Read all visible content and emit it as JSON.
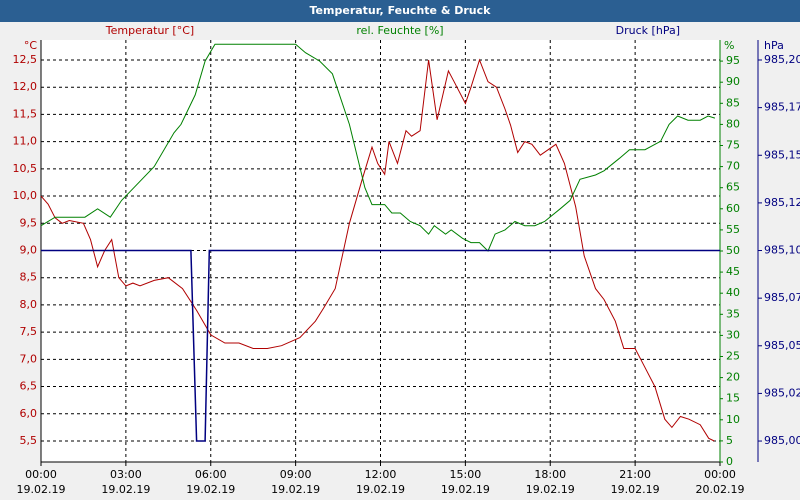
{
  "chart_data": {
    "type": "line",
    "title": "Temperatur, Feuchte & Druck",
    "y_unit": "°C",
    "y2_unit": "%",
    "y3_unit": "hPa",
    "xlim": [
      0,
      24
    ],
    "xticks": [
      {
        "value": 0,
        "label": "00:00"
      },
      {
        "value": 3,
        "label": "03:00"
      },
      {
        "value": 6,
        "label": "06:00"
      },
      {
        "value": 9,
        "label": "09:00"
      },
      {
        "value": 12,
        "label": "12:00"
      },
      {
        "value": 15,
        "label": "15:00"
      },
      {
        "value": 18,
        "label": "18:00"
      },
      {
        "value": 21,
        "label": "21:00"
      },
      {
        "value": 24,
        "label": "00:00"
      }
    ],
    "xtick_dates": [
      "19.02.19",
      "19.02.19",
      "19.02.19",
      "19.02.19",
      "19.02.19",
      "19.02.19",
      "19.02.19",
      "19.02.19",
      "20.02.19"
    ],
    "ylim": [
      5.114,
      12.867
    ],
    "yticks": [
      {
        "value": 5.5,
        "label": "5,5"
      },
      {
        "value": 6,
        "label": "6,0"
      },
      {
        "value": 6.5,
        "label": "6,5"
      },
      {
        "value": 7,
        "label": "7,0"
      },
      {
        "value": 7.5,
        "label": "7,5"
      },
      {
        "value": 8,
        "label": "8,0"
      },
      {
        "value": 8.5,
        "label": "8,5"
      },
      {
        "value": 9,
        "label": "9,0"
      },
      {
        "value": 9.5,
        "label": "9,5"
      },
      {
        "value": 10,
        "label": "10,0"
      },
      {
        "value": 10.5,
        "label": "10,5"
      },
      {
        "value": 11,
        "label": "11,0"
      },
      {
        "value": 11.5,
        "label": "11,5"
      },
      {
        "value": 12,
        "label": "12,0"
      },
      {
        "value": 12.5,
        "label": "12,5"
      }
    ],
    "y2lim": [
      0,
      100
    ],
    "y2ticks": [
      0,
      5,
      10,
      15,
      20,
      25,
      30,
      35,
      40,
      45,
      50,
      55,
      60,
      65,
      70,
      75,
      80,
      85,
      90,
      95
    ],
    "y3lim": [
      984.989,
      985.2105
    ],
    "y3ticks": [
      {
        "value": 985.0,
        "label": "985,00"
      },
      {
        "value": 985.025,
        "label": "985,02"
      },
      {
        "value": 985.05,
        "label": "985,05"
      },
      {
        "value": 985.075,
        "label": "985,07"
      },
      {
        "value": 985.1,
        "label": "985,10"
      },
      {
        "value": 985.125,
        "label": "985,12"
      },
      {
        "value": 985.15,
        "label": "985,15"
      },
      {
        "value": 985.175,
        "label": "985,17"
      },
      {
        "value": 985.2,
        "label": "985,20"
      }
    ],
    "grid": true,
    "series": [
      {
        "name": "Temperatur [°C]",
        "color": "#b00000",
        "axis": "y",
        "x": [
          0,
          0.25,
          0.5,
          0.75,
          1.0,
          1.5,
          1.75,
          2.0,
          2.25,
          2.5,
          2.75,
          3.0,
          3.25,
          3.5,
          4.0,
          4.5,
          5.0,
          5.5,
          6.0,
          6.5,
          7.0,
          7.5,
          8.0,
          8.5,
          9.15,
          9.7,
          10.0,
          10.4,
          10.9,
          11.35,
          11.7,
          11.9,
          12.15,
          12.3,
          12.6,
          12.9,
          13.1,
          13.4,
          13.7,
          14.0,
          14.4,
          14.6,
          15.0,
          15.2,
          15.5,
          15.8,
          16.1,
          16.4,
          16.6,
          16.85,
          17.1,
          17.35,
          17.65,
          18.2,
          18.5,
          18.9,
          19.2,
          19.6,
          19.9,
          20.3,
          20.6,
          21.0,
          21.3,
          21.7,
          22.05,
          22.3,
          22.6,
          22.9,
          23.3,
          23.6,
          23.8
        ],
        "values": [
          10.0,
          9.85,
          9.6,
          9.5,
          9.55,
          9.5,
          9.2,
          8.7,
          9.0,
          9.2,
          8.5,
          8.35,
          8.4,
          8.35,
          8.45,
          8.5,
          8.3,
          7.9,
          7.45,
          7.3,
          7.3,
          7.2,
          7.2,
          7.25,
          7.4,
          7.7,
          7.95,
          8.3,
          9.5,
          10.3,
          10.9,
          10.6,
          10.4,
          11.0,
          10.6,
          11.2,
          11.1,
          11.2,
          12.5,
          11.4,
          12.3,
          12.1,
          11.7,
          12.0,
          12.5,
          12.1,
          12.0,
          11.6,
          11.3,
          10.8,
          11.0,
          10.95,
          10.75,
          10.95,
          10.6,
          9.8,
          8.9,
          8.3,
          8.1,
          7.7,
          7.2,
          7.2,
          6.9,
          6.5,
          5.9,
          5.75,
          5.95,
          5.9,
          5.8,
          5.55,
          5.5
        ]
      },
      {
        "name": "rel. Feuchte [%]",
        "color": "#008000",
        "axis": "y2",
        "x": [
          0,
          0.5,
          1.0,
          1.55,
          2.0,
          2.45,
          2.85,
          4.0,
          4.7,
          4.95,
          5.45,
          5.8,
          6.15,
          9.0,
          9.35,
          9.85,
          10.3,
          10.9,
          11.45,
          11.7,
          12.15,
          12.4,
          12.7,
          13.05,
          13.4,
          13.7,
          13.9,
          14.3,
          14.5,
          14.9,
          15.2,
          15.5,
          15.8,
          16.05,
          16.4,
          16.75,
          17.1,
          17.45,
          17.8,
          18.35,
          18.7,
          19.05,
          19.6,
          19.9,
          20.45,
          20.8,
          21.35,
          21.9,
          22.2,
          22.5,
          22.87,
          23.3,
          23.58,
          23.82
        ],
        "values": [
          56,
          58,
          58,
          58,
          60,
          58,
          62,
          70,
          78,
          80,
          87,
          95,
          99,
          99,
          97,
          95,
          92,
          80,
          65,
          61,
          61,
          59,
          59,
          57,
          56,
          54,
          56,
          54,
          55,
          53,
          52,
          52,
          50,
          54,
          55,
          57,
          56,
          56,
          57,
          60,
          62,
          67,
          68,
          69,
          72,
          74,
          74,
          76,
          80,
          82,
          81,
          81,
          82,
          81.5
        ]
      },
      {
        "name": "Druck [hPa]",
        "color": "#000080",
        "axis": "y3",
        "x": [
          0,
          5.3,
          5.5,
          5.8,
          5.95,
          24
        ],
        "values": [
          985.1,
          985.1,
          985.0,
          985.0,
          985.1,
          985.1
        ]
      }
    ]
  }
}
